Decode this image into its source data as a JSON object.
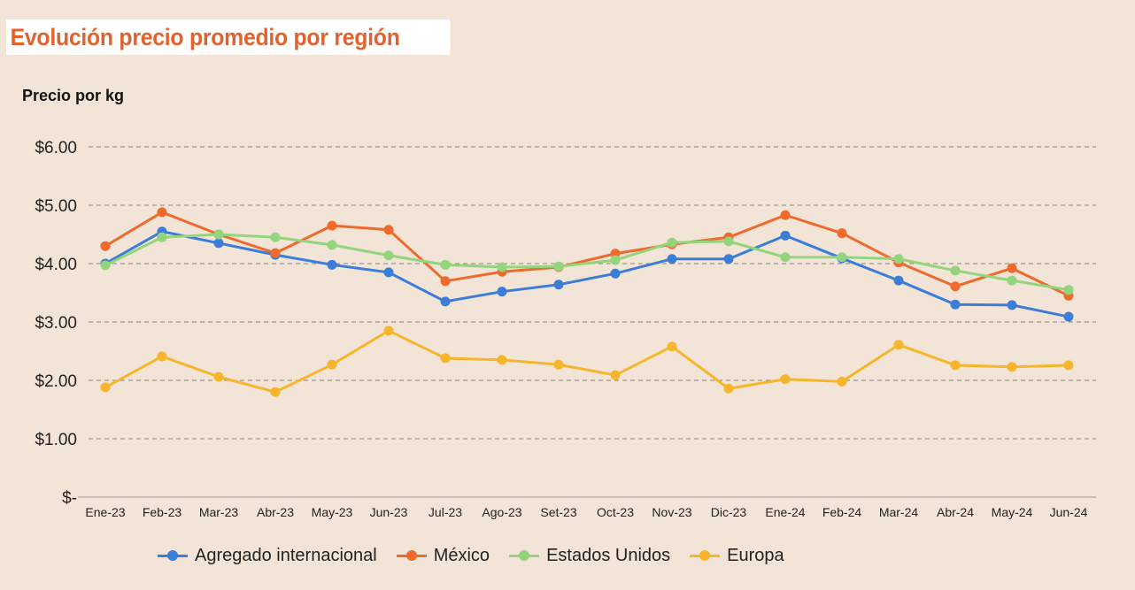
{
  "chart_data": {
    "type": "line",
    "title": "Evolución precio promedio por región",
    "ylabel": "Precio por kg",
    "xlabel": "",
    "ylim": [
      0,
      6
    ],
    "yticks": [
      "$-",
      "$1.00",
      "$2.00",
      "$3.00",
      "$4.00",
      "$5.00",
      "$6.00"
    ],
    "grid": true,
    "legend": "bottom",
    "categories": [
      "Ene-23",
      "Feb-23",
      "Mar-23",
      "Abr-23",
      "May-23",
      "Jun-23",
      "Jul-23",
      "Ago-23",
      "Set-23",
      "Oct-23",
      "Nov-23",
      "Dic-23",
      "Ene-24",
      "Feb-24",
      "Mar-24",
      "Abr-24",
      "May-24",
      "Jun-24"
    ],
    "series": [
      {
        "name": "Agregado internacional",
        "color": "#3b7dd8",
        "values": [
          4.0,
          4.55,
          4.35,
          4.15,
          3.98,
          3.85,
          3.35,
          3.52,
          3.64,
          3.83,
          4.08,
          4.08,
          4.48,
          4.09,
          3.71,
          3.3,
          3.29,
          3.09
        ]
      },
      {
        "name": "México",
        "color": "#ef6a2c",
        "values": [
          4.3,
          4.88,
          4.5,
          4.18,
          4.65,
          4.58,
          3.7,
          3.86,
          3.94,
          4.17,
          4.33,
          4.45,
          4.83,
          4.52,
          4.02,
          3.61,
          3.92,
          3.45
        ]
      },
      {
        "name": "Estados Unidos",
        "color": "#93d47c",
        "values": [
          3.97,
          4.45,
          4.5,
          4.45,
          4.32,
          4.14,
          3.98,
          3.94,
          3.95,
          4.06,
          4.36,
          4.38,
          4.11,
          4.11,
          4.08,
          3.88,
          3.71,
          3.55
        ]
      },
      {
        "name": "Europa",
        "color": "#f7b52b",
        "values": [
          1.88,
          2.41,
          2.06,
          1.8,
          2.27,
          2.85,
          2.38,
          2.35,
          2.27,
          2.09,
          2.58,
          1.86,
          2.02,
          1.98,
          2.61,
          2.26,
          2.23,
          2.26
        ]
      }
    ]
  }
}
